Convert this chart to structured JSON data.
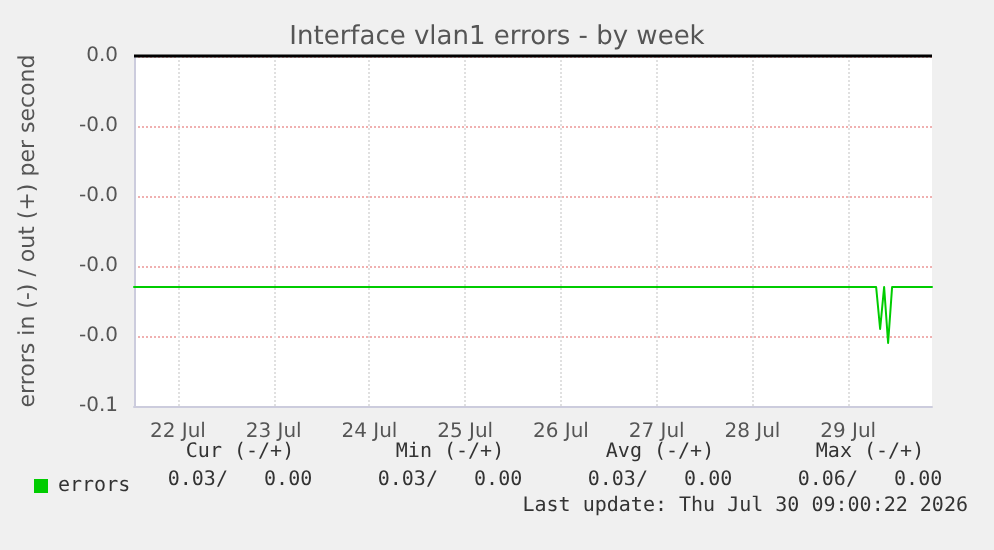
{
  "chart_data": {
    "type": "line",
    "title": "Interface vlan1 errors - by week",
    "ylabel": "errors in (-) / out (+) per second",
    "series": [
      {
        "name": "errors",
        "color": "#00cc00",
        "x": [
          "2026-07-22T01:00",
          "2026-07-22T12:00",
          "2026-07-23T00:00",
          "2026-07-23T12:00",
          "2026-07-24T00:00",
          "2026-07-24T12:00",
          "2026-07-25T00:00",
          "2026-07-25T12:00",
          "2026-07-26T00:00",
          "2026-07-26T12:00",
          "2026-07-27T00:00",
          "2026-07-27T12:00",
          "2026-07-28T00:00",
          "2026-07-28T12:00",
          "2026-07-29T00:00",
          "2026-07-29T12:00",
          "2026-07-29T19:00",
          "2026-07-29T20:00",
          "2026-07-29T21:00",
          "2026-07-29T22:00",
          "2026-07-29T23:00",
          "2026-07-30T00:00",
          "2026-07-30T09:00"
        ],
        "values": [
          -0.033,
          -0.033,
          -0.033,
          -0.033,
          -0.033,
          -0.033,
          -0.033,
          -0.033,
          -0.033,
          -0.033,
          -0.033,
          -0.033,
          -0.033,
          -0.033,
          -0.033,
          -0.033,
          -0.033,
          -0.039,
          -0.033,
          -0.041,
          -0.033,
          -0.033,
          -0.033
        ]
      }
    ],
    "xlim": [
      "2026-07-22T01:00",
      "2026-07-30T09:00"
    ],
    "xticks": [
      {
        "value": "2026-07-22T12:00",
        "label": "22 Jul"
      },
      {
        "value": "2026-07-23T12:00",
        "label": "23 Jul"
      },
      {
        "value": "2026-07-24T12:00",
        "label": "24 Jul"
      },
      {
        "value": "2026-07-25T12:00",
        "label": "25 Jul"
      },
      {
        "value": "2026-07-26T12:00",
        "label": "26 Jul"
      },
      {
        "value": "2026-07-27T12:00",
        "label": "27 Jul"
      },
      {
        "value": "2026-07-28T12:00",
        "label": "28 Jul"
      },
      {
        "value": "2026-07-29T12:00",
        "label": "29 Jul"
      }
    ],
    "ylim": [
      -0.05,
      0
    ],
    "yticks": [
      {
        "value": -0.05,
        "label": "-0.1"
      },
      {
        "value": -0.04,
        "label": "-0.0"
      },
      {
        "value": -0.03,
        "label": "-0.0"
      },
      {
        "value": -0.02,
        "label": "-0.0"
      },
      {
        "value": -0.01,
        "label": "-0.0"
      },
      {
        "value": 0,
        "label": "0.0"
      }
    ],
    "ref_lines": [
      {
        "axis": "y",
        "value": 0,
        "color": "#000000"
      }
    ],
    "grid": true,
    "legend": "bottom left",
    "marker": "none",
    "line_style": "solid",
    "annotations": [
      "Cur (-/+)",
      "Min (-/+)",
      "Avg (-/+)",
      "Max (-/+)",
      "0.03/   0.00",
      "0.03/   0.00",
      "0.03/   0.00",
      "0.06/   0.00",
      "Last update: Thu Jul 30 09:00:22 2026"
    ]
  }
}
